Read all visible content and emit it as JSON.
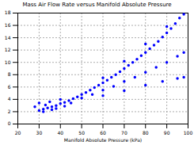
{
  "chart_data": {
    "type": "scatter",
    "title": "Mass Air Flow Rate versus Manifold Absolute Pressure",
    "x_label": "Manifold Absolute Pressure (kPa)",
    "color": "#0000ff",
    "marker": "dot",
    "grid": true,
    "xlim": [
      20,
      100
    ],
    "xticks": [
      20,
      30,
      40,
      50,
      60,
      70,
      80,
      90,
      100
    ],
    "ylim": [
      0,
      18
    ],
    "yticks": [
      0,
      2,
      4,
      6,
      8,
      10,
      12,
      14,
      16,
      18
    ],
    "x": [
      30,
      32,
      34,
      36,
      38,
      40,
      42,
      44,
      46,
      48,
      50,
      52,
      54,
      56,
      58,
      60,
      62,
      64,
      66,
      68,
      70,
      72,
      74,
      76,
      78,
      80,
      82,
      84,
      86,
      88,
      90,
      92,
      94,
      96,
      50,
      55,
      60,
      65,
      70,
      75,
      80,
      85,
      90,
      95,
      98,
      60,
      70,
      80,
      88,
      95,
      98,
      60,
      70,
      80,
      90,
      98,
      28,
      30,
      32,
      35,
      38,
      40,
      33,
      36,
      42,
      45
    ],
    "values": [
      2.2,
      2.4,
      2.6,
      2.8,
      3.0,
      3.3,
      3.5,
      3.8,
      4.1,
      4.4,
      4.8,
      5.1,
      5.5,
      5.9,
      6.3,
      6.7,
      7.1,
      7.6,
      8.0,
      8.5,
      9.0,
      9.5,
      10.0,
      10.5,
      11.1,
      11.6,
      12.2,
      12.8,
      13.4,
      14.1,
      14.8,
      15.5,
      16.3,
      17.2,
      4.2,
      4.8,
      5.5,
      6.1,
      6.9,
      7.6,
      8.4,
      9.2,
      10.0,
      11.0,
      11.6,
      4.6,
      5.4,
      6.3,
      6.9,
      7.4,
      7.6,
      7.5,
      10.2,
      13.0,
      15.8,
      17.8,
      2.8,
      3.4,
      2.0,
      3.6,
      2.5,
      4.0,
      3.1,
      2.3,
      2.9,
      3.4
    ]
  }
}
